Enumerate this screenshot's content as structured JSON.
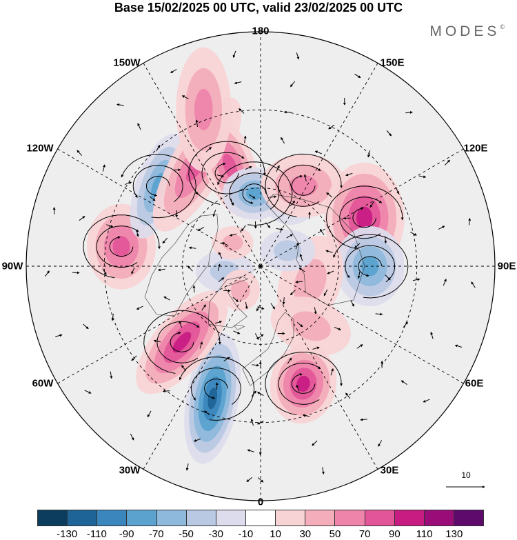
{
  "title": "Base 15/02/2025 00 UTC, valid 23/02/2025 00 UTC",
  "brand": "MODES",
  "brand_mark": "©",
  "longitude_labels": {
    "top": "180",
    "bottom": "0",
    "left": "90W",
    "right": "90E",
    "upper_left_1": "150W",
    "upper_left_2": "120W",
    "lower_left_1": "60W",
    "lower_left_2": "30W",
    "upper_right_1": "150E",
    "upper_right_2": "120E",
    "lower_right_1": "60E",
    "lower_right_2": "30E"
  },
  "reference_vector": {
    "label": "10"
  },
  "colorbar": {
    "colors": [
      "#0c3c5e",
      "#1f6496",
      "#3b87bd",
      "#5ba2cf",
      "#8eb8dc",
      "#b9c9e3",
      "#dcdcec",
      "#ffffff",
      "#f8d3d5",
      "#f3adbb",
      "#ee84aa",
      "#e25699",
      "#c81c83",
      "#9a0c78",
      "#5d0a6c"
    ],
    "ticks": [
      "-130",
      "-110",
      "-90",
      "-70",
      "-50",
      "-30",
      "-10",
      "10",
      "30",
      "50",
      "70",
      "90",
      "110",
      "130"
    ]
  },
  "anomalies": [
    {
      "lon": 20,
      "lat": 42,
      "rx": 48,
      "ry": 58,
      "rot": 10,
      "level": 85
    },
    {
      "lon": 340,
      "lat": 36,
      "rx": 38,
      "ry": 96,
      "rot": 10,
      "level": -100
    },
    {
      "lon": 314,
      "lat": 48,
      "rx": 40,
      "ry": 92,
      "rot": 40,
      "level": 90
    },
    {
      "lon": 262,
      "lat": 36,
      "rx": 50,
      "ry": 62,
      "rot": 0,
      "level": 60
    },
    {
      "lon": 232,
      "lat": 40,
      "rx": 32,
      "ry": 80,
      "rot": 20,
      "level": -60
    },
    {
      "lon": 212,
      "lat": 44,
      "rx": 38,
      "ry": 110,
      "rot": 30,
      "level": 70
    },
    {
      "lon": 197,
      "lat": 50,
      "rx": 36,
      "ry": 78,
      "rot": -20,
      "level": 55
    },
    {
      "lon": 158,
      "lat": 60,
      "rx": 42,
      "ry": 45,
      "rot": -10,
      "level": -40
    },
    {
      "lon": 185,
      "lat": 62,
      "rx": 46,
      "ry": 38,
      "rot": 0,
      "level": -55
    },
    {
      "lon": 200,
      "lat": 26,
      "rx": 40,
      "ry": 90,
      "rot": 0,
      "level": 45
    },
    {
      "lon": 152,
      "lat": 55,
      "rx": 62,
      "ry": 46,
      "rot": 0,
      "level": 40
    },
    {
      "lon": 115,
      "lat": 46,
      "rx": 58,
      "ry": 80,
      "rot": 0,
      "level": 90
    },
    {
      "lon": 90,
      "lat": 48,
      "rx": 50,
      "ry": 58,
      "rot": 0,
      "level": -70
    },
    {
      "lon": 72,
      "lat": 70,
      "rx": 44,
      "ry": 70,
      "rot": 20,
      "level": 25
    },
    {
      "lon": 40,
      "lat": 60,
      "rx": 60,
      "ry": 40,
      "rot": 20,
      "level": 25
    },
    {
      "lon": 278,
      "lat": 76,
      "rx": 42,
      "ry": 30,
      "rot": 0,
      "level": -30
    },
    {
      "lon": 120,
      "lat": 78,
      "rx": 40,
      "ry": 30,
      "rot": 0,
      "level": -25
    },
    {
      "lon": 320,
      "lat": 78,
      "rx": 28,
      "ry": 30,
      "rot": 0,
      "level": 25
    },
    {
      "lon": 230,
      "lat": 76,
      "rx": 30,
      "ry": 24,
      "rot": 0,
      "level": 30
    }
  ],
  "circulations": [
    {
      "lon": 20,
      "lat": 42,
      "dir": 1
    },
    {
      "lon": 340,
      "lat": 40,
      "dir": -1
    },
    {
      "lon": 314,
      "lat": 48,
      "dir": 1
    },
    {
      "lon": 262,
      "lat": 36,
      "dir": 1
    },
    {
      "lon": 232,
      "lat": 40,
      "dir": -1
    },
    {
      "lon": 200,
      "lat": 52,
      "dir": 1
    },
    {
      "lon": 185,
      "lat": 62,
      "dir": -1
    },
    {
      "lon": 152,
      "lat": 55,
      "dir": 1
    },
    {
      "lon": 115,
      "lat": 46,
      "dir": 1
    },
    {
      "lon": 90,
      "lat": 48,
      "dir": -1
    }
  ]
}
